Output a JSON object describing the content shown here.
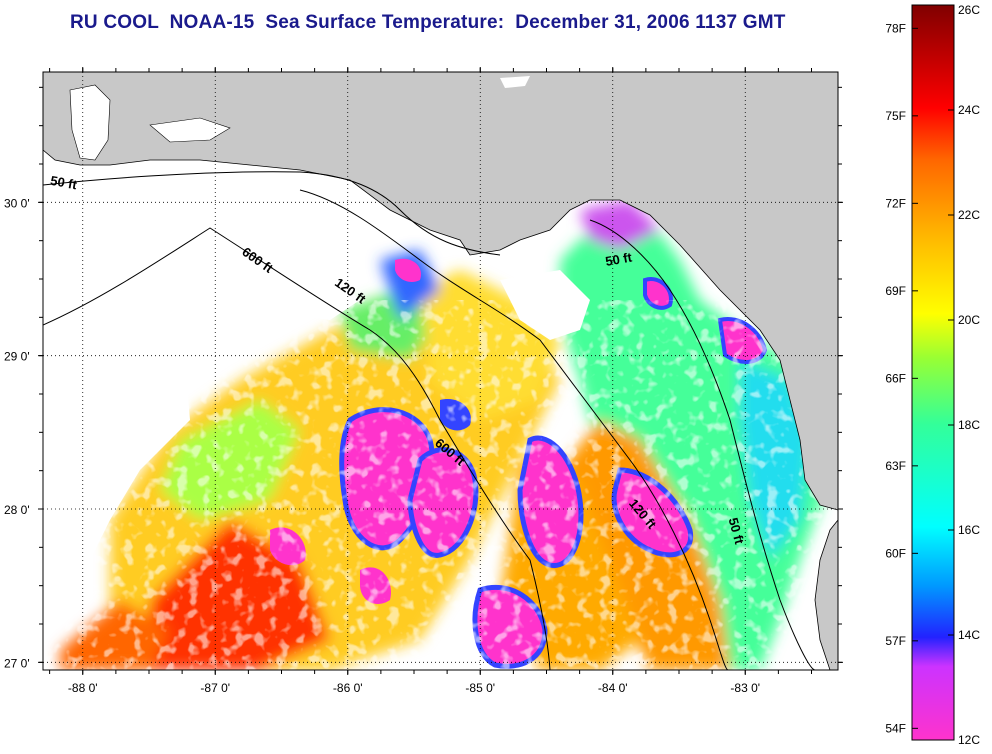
{
  "title": "RU COOL  NOAA-15  Sea Surface Temperature:  December 31, 2006 1137 GMT",
  "map": {
    "lon_range": [
      -88.3,
      -82.3
    ],
    "lat_range": [
      26.95,
      30.85
    ],
    "x_ticks": [
      {
        "value": -88,
        "label": "-88 0'"
      },
      {
        "value": -87,
        "label": "-87 0'"
      },
      {
        "value": -86,
        "label": "-86 0'"
      },
      {
        "value": -85,
        "label": "-85 0'"
      },
      {
        "value": -84,
        "label": "-84 0'"
      },
      {
        "value": -83,
        "label": "-83 0'"
      }
    ],
    "y_ticks": [
      {
        "value": 30,
        "label": "30 0'"
      },
      {
        "value": 29,
        "label": "29 0'"
      },
      {
        "value": 28,
        "label": "28 0'"
      },
      {
        "value": 27,
        "label": "27 0'"
      }
    ],
    "grid": "dotted",
    "land_color": "#c8c8c8",
    "cloud_color": "#ffffff",
    "contour_labels": [
      {
        "text": "50 ft",
        "lon": -88.15,
        "lat": 30.1,
        "rotate": 10
      },
      {
        "text": "600 ft",
        "lon": -86.7,
        "lat": 29.6,
        "rotate": 35
      },
      {
        "text": "120 ft",
        "lon": -86.0,
        "lat": 29.4,
        "rotate": 35
      },
      {
        "text": "50 ft",
        "lon": -83.95,
        "lat": 29.6,
        "rotate": -10
      },
      {
        "text": "600 ft",
        "lon": -85.25,
        "lat": 28.35,
        "rotate": 40
      },
      {
        "text": "120 ft",
        "lon": -83.8,
        "lat": 27.95,
        "rotate": 50
      },
      {
        "text": "50 ft",
        "lon": -83.1,
        "lat": 27.85,
        "rotate": 75
      }
    ]
  },
  "colorbar": {
    "left_labels": [
      "78F",
      "75F",
      "72F",
      "69F",
      "66F",
      "63F",
      "60F",
      "57F",
      "54F"
    ],
    "right_labels": [
      "26C",
      "24C",
      "22C",
      "20C",
      "18C",
      "16C",
      "14C",
      "12C"
    ],
    "range_c": [
      12,
      26
    ],
    "colors": [
      "#ff33cc",
      "#cc33ff",
      "#3333ff",
      "#00ccff",
      "#00ffcc",
      "#33ff66",
      "#ccff33",
      "#ffff00",
      "#ffcc00",
      "#ff9900",
      "#ff5500",
      "#ff0000",
      "#cc0000",
      "#990000"
    ]
  }
}
